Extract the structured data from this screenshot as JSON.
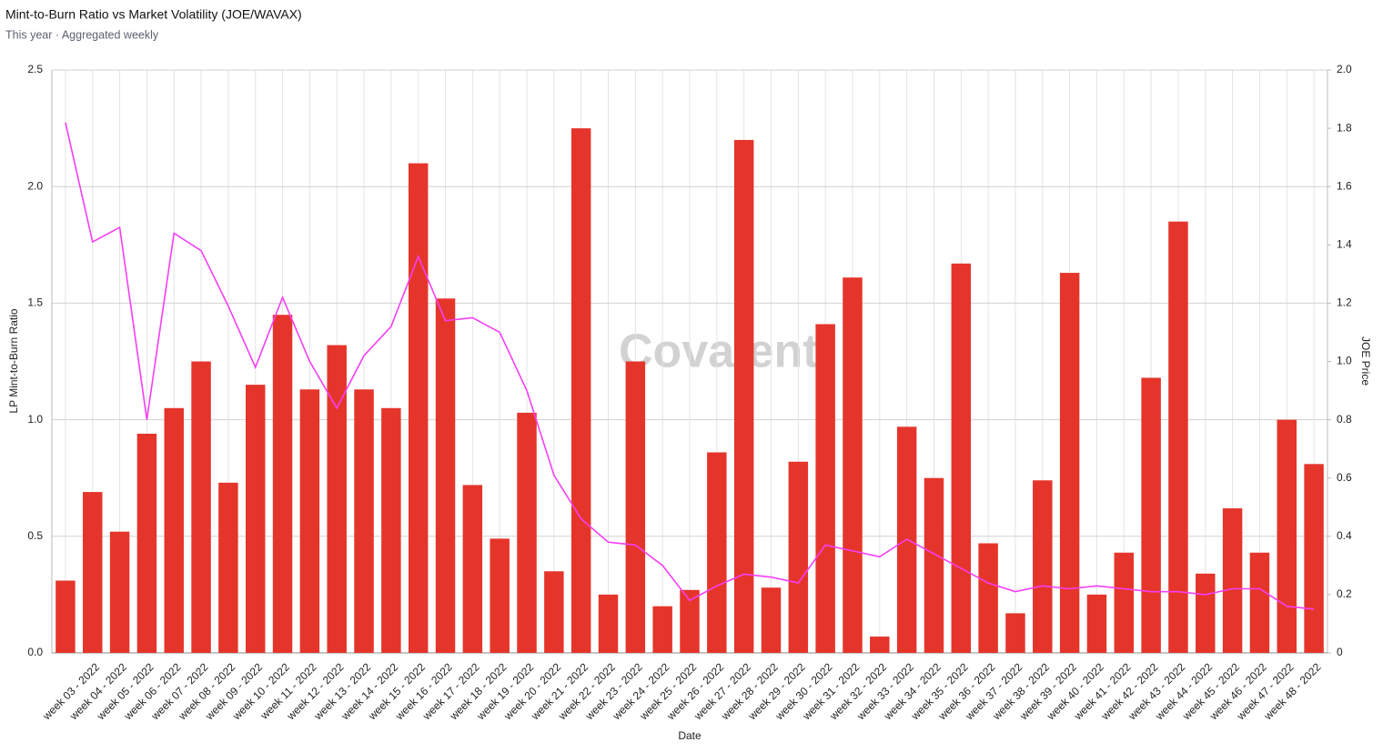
{
  "chart_data": {
    "type": "bar-line",
    "title": "Mint-to-Burn Ratio vs Market Volatility (JOE/WAVAX)",
    "subtitle": "This year · Aggregated weekly",
    "watermark": "Covalent",
    "x_label": "Date",
    "y_label": "LP Mint-to-Burn Ratio",
    "y2_label": "JOE Price",
    "categories": [
      null,
      "week 03 - 2022",
      "week 04 - 2022",
      "week 05 - 2022",
      "week 06 - 2022",
      "week 07 - 2022",
      "week 08 - 2022",
      "week 09 - 2022",
      "week 10 - 2022",
      "week 11 - 2022",
      "week 12 - 2022",
      "week 13 - 2022",
      "week 14 - 2022",
      "week 15 - 2022",
      "week 16 - 2022",
      "week 17 - 2022",
      "week 18 - 2022",
      "week 19 - 2022",
      "week 20 - 2022",
      "week 21 - 2022",
      "week 22 - 2022",
      "week 23 - 2022",
      "week 24 - 2022",
      "week 25 - 2022",
      "week 26 - 2022",
      "week 27 - 2022",
      "week 28 - 2022",
      "week 29 - 2022",
      "week 30 - 2022",
      "week 31 - 2022",
      "week 32 - 2022",
      "week 33 - 2022",
      "week 34 - 2022",
      "week 35 - 2022",
      "week 36 - 2022",
      "week 37 - 2022",
      "week 38 - 2022",
      "week 39 - 2022",
      "week 40 - 2022",
      "week 41 - 2022",
      "week 42 - 2022",
      "week 43 - 2022",
      "week 44 - 2022",
      "week 45 - 2022",
      "week 46 - 2022",
      "week 47 - 2022",
      "week 48 - 2022"
    ],
    "series": [
      {
        "type": "bar",
        "color": "#e5352b",
        "values": [
          0.31,
          0.69,
          0.52,
          0.94,
          1.05,
          1.25,
          0.73,
          1.15,
          1.45,
          1.13,
          1.32,
          1.13,
          1.05,
          2.1,
          1.52,
          0.72,
          0.49,
          1.03,
          0.35,
          2.25,
          0.25,
          1.25,
          0.2,
          0.27,
          0.86,
          2.2,
          0.28,
          0.82,
          1.41,
          1.61,
          0.07,
          0.97,
          0.75,
          1.67,
          0.47,
          0.17,
          0.74,
          1.63,
          0.25,
          0.43,
          1.18,
          1.85,
          0.34,
          0.62,
          0.43,
          1.0,
          0.81
        ]
      },
      {
        "type": "line",
        "axis": "y2",
        "color": "#f53ff5",
        "values": [
          1.82,
          1.41,
          1.46,
          0.8,
          1.44,
          1.38,
          1.19,
          0.98,
          1.22,
          1.0,
          0.84,
          1.02,
          1.12,
          1.36,
          1.14,
          1.15,
          1.1,
          0.9,
          0.61,
          0.46,
          0.38,
          0.37,
          0.3,
          0.18,
          0.23,
          0.27,
          0.26,
          0.24,
          0.37,
          0.35,
          0.33,
          0.39,
          0.34,
          0.29,
          0.24,
          0.21,
          0.23,
          0.22,
          0.23,
          0.22,
          0.21,
          0.21,
          0.2,
          0.22,
          0.22,
          0.16,
          0.15
        ]
      }
    ],
    "ylim": [
      0,
      2.5
    ],
    "yticks": [
      {
        "value": 0,
        "label": "0.0"
      },
      0.5,
      {
        "value": 1,
        "label": "1.0"
      },
      1.5,
      {
        "value": 2,
        "label": "2.0"
      },
      2.5
    ],
    "y2lim": [
      0,
      2
    ],
    "y2ticks": [
      0,
      0.2,
      0.4,
      0.6,
      0.8,
      {
        "value": 1,
        "label": "1.0"
      },
      1.2,
      1.4,
      1.6,
      1.8,
      {
        "value": 2,
        "label": "2.0"
      }
    ],
    "grid": true
  }
}
